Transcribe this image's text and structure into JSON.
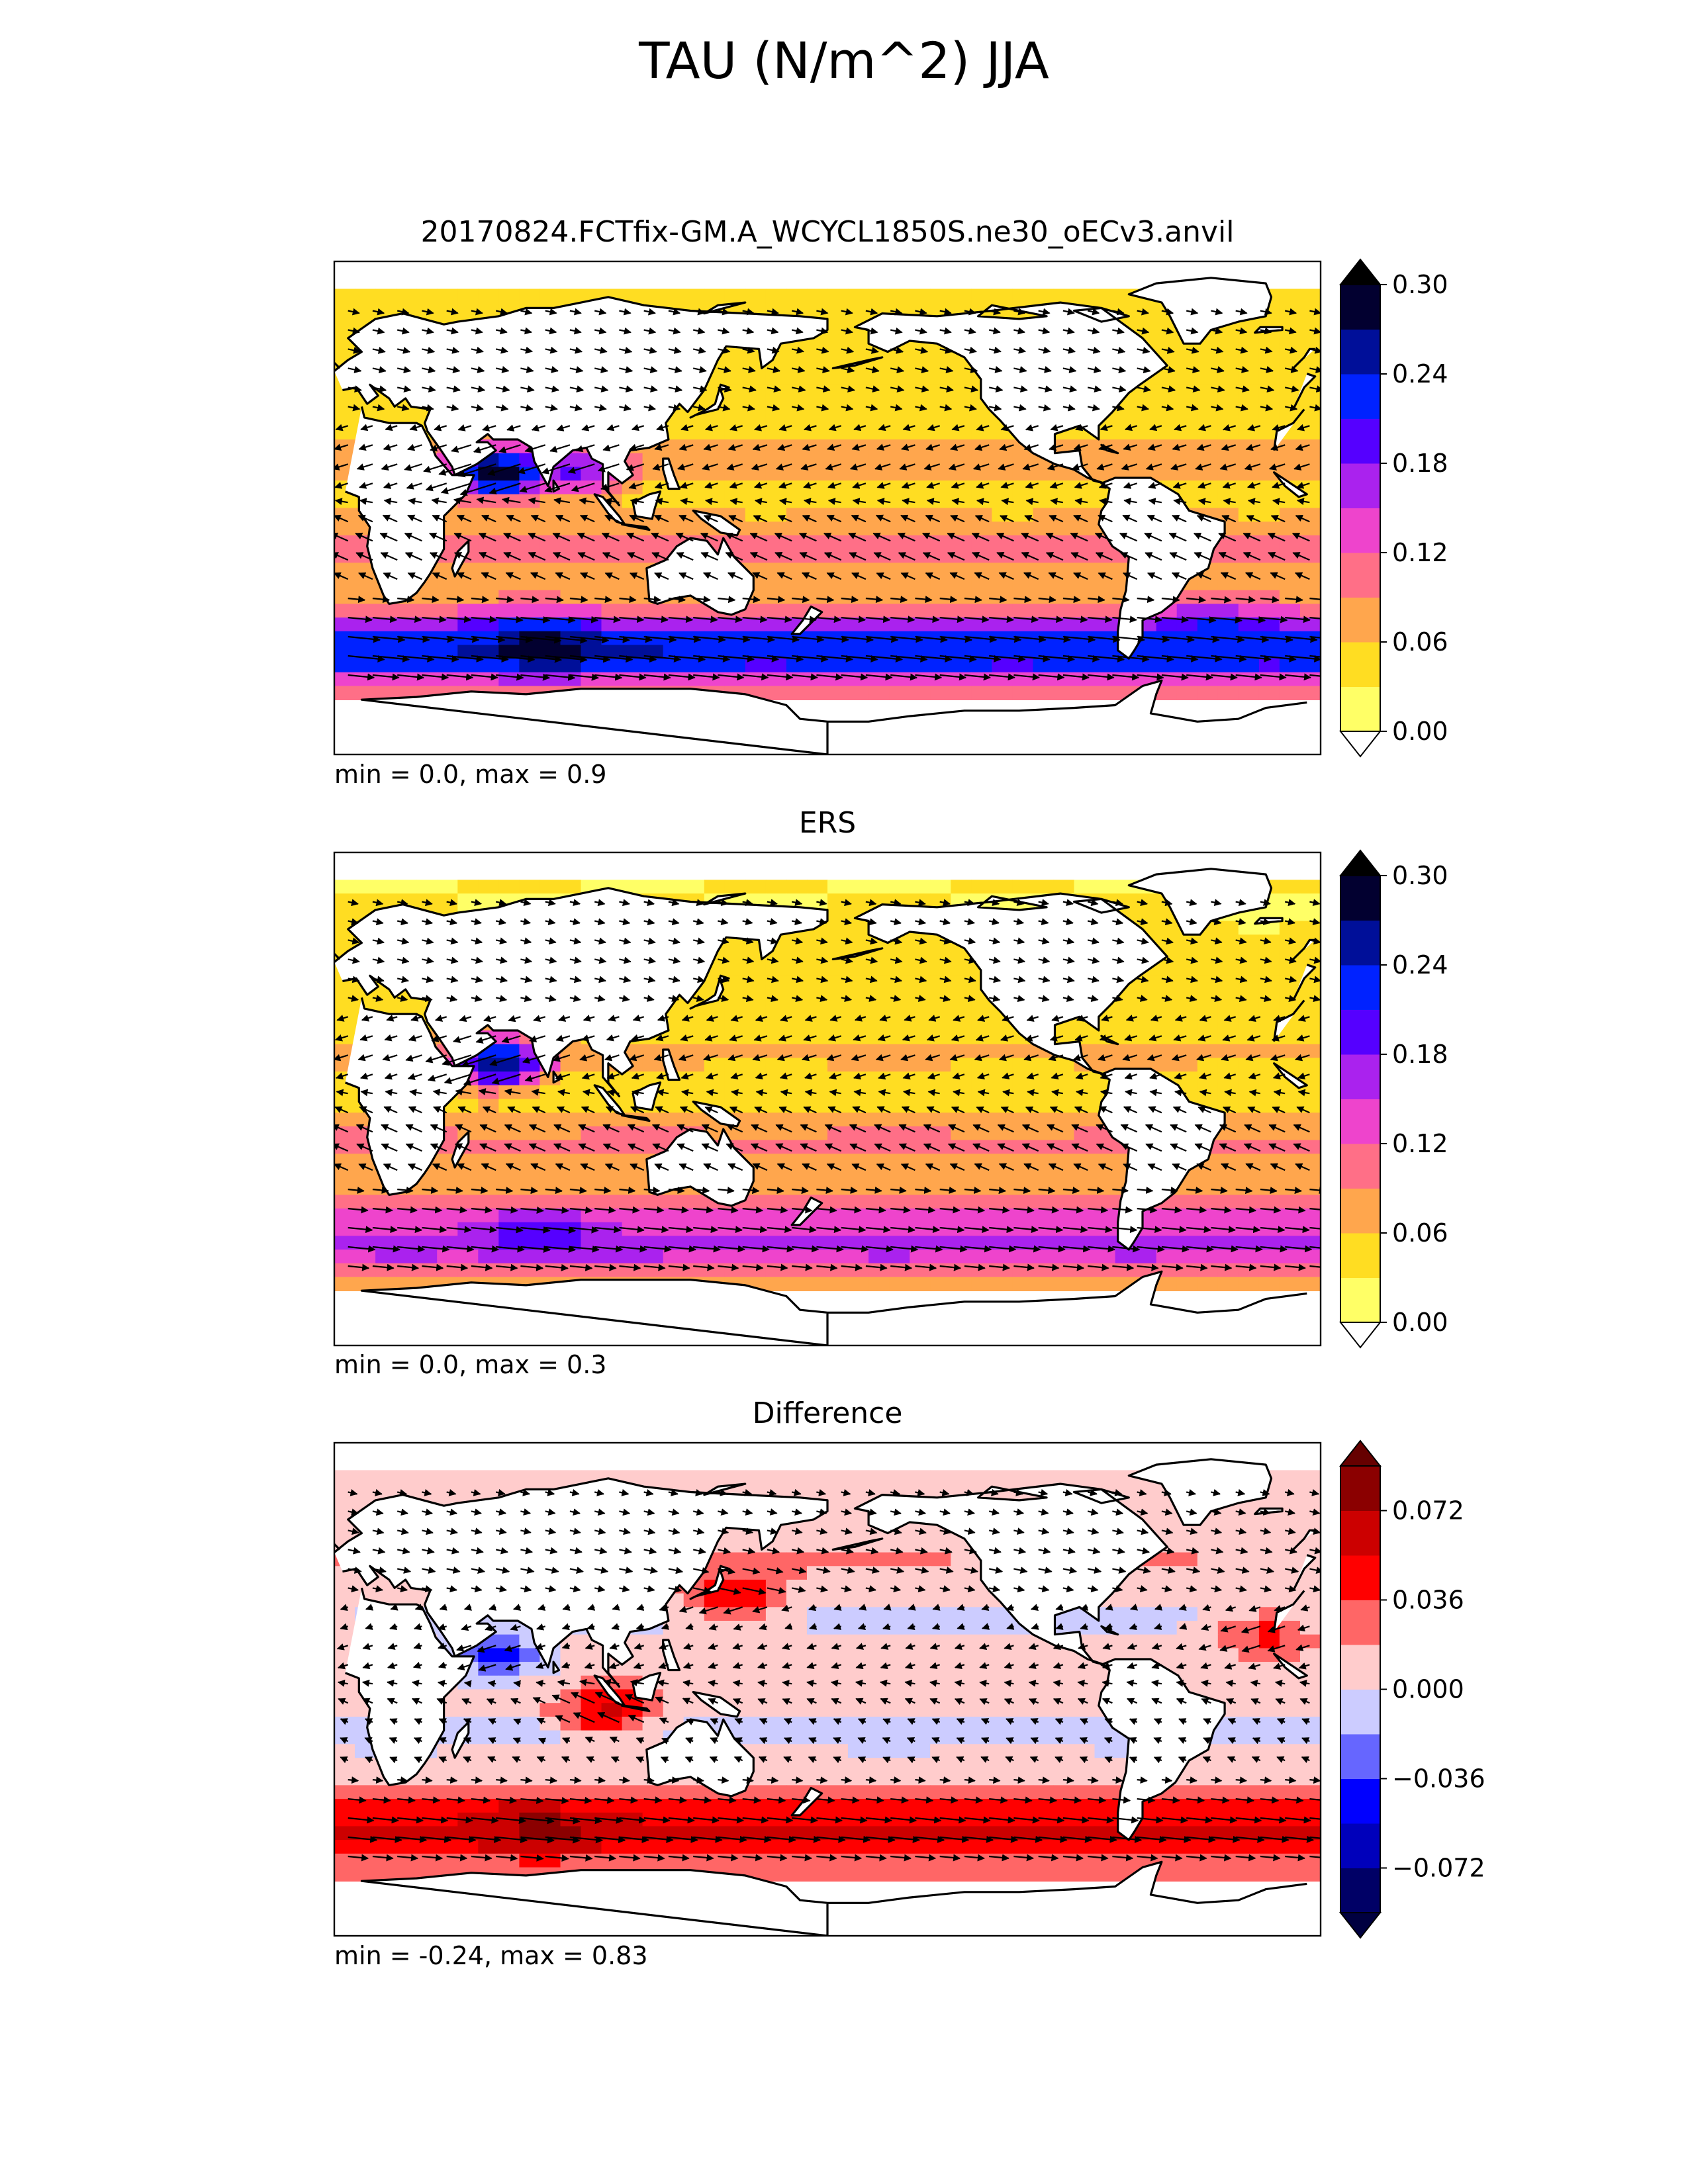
{
  "figure": {
    "title": "TAU (N/m^2) JJA"
  },
  "chart_data": [
    {
      "type": "heatmap",
      "panel": "test",
      "title": "20170824.FCTfix-GM.A_WCYCL1850S.ne30_oECv3.anvil",
      "stats": "min = 0.0, max = 0.9",
      "colorbar": {
        "levels": [
          0.0,
          0.03,
          0.06,
          0.09,
          0.12,
          0.15,
          0.18,
          0.21,
          0.24,
          0.27,
          0.3
        ],
        "tick_values": [
          0.0,
          0.06,
          0.12,
          0.18,
          0.24,
          0.3
        ],
        "tick_labels": [
          "0.00",
          "0.06",
          "0.12",
          "0.18",
          "0.24",
          "0.30"
        ],
        "colors": [
          "#ffff66",
          "#ffdd22",
          "#ffa64d",
          "#ff6f87",
          "#ee44cc",
          "#aa22ee",
          "#5500ff",
          "#0022ff",
          "#000f99",
          "#020030"
        ],
        "extend_low_color": "#ffffff",
        "extend_high_color": "#000000"
      },
      "bands": [
        {
          "lat": 75,
          "v": 0.04
        },
        {
          "lat": 65,
          "v": 0.04
        },
        {
          "lat": 55,
          "v": 0.05
        },
        {
          "lat": 45,
          "v": 0.06
        },
        {
          "lat": 35,
          "v": 0.04
        },
        {
          "lat": 25,
          "v": 0.06
        },
        {
          "lat": 15,
          "v": 0.08
        },
        {
          "lat": 5,
          "v": 0.04
        },
        {
          "lat": -5,
          "v": 0.07
        },
        {
          "lat": -15,
          "v": 0.11
        },
        {
          "lat": -25,
          "v": 0.07
        },
        {
          "lat": -35,
          "v": 0.09
        },
        {
          "lat": -45,
          "v": 0.2
        },
        {
          "lat": -55,
          "v": 0.25
        },
        {
          "lat": -65,
          "v": 0.1
        }
      ],
      "hotspots": [
        {
          "lon": 60,
          "lat": 13,
          "v": 0.3
        },
        {
          "lon": 88,
          "lat": 14,
          "v": 0.19
        },
        {
          "lon": 75,
          "lat": -50,
          "v": 0.3
        },
        {
          "lon": -40,
          "lat": -45,
          "v": 0.22
        }
      ],
      "vector_scale": 0.3
    },
    {
      "type": "heatmap",
      "panel": "reference",
      "title": "ERS",
      "stats": "min = 0.0, max = 0.3",
      "colorbar": {
        "levels": [
          0.0,
          0.03,
          0.06,
          0.09,
          0.12,
          0.15,
          0.18,
          0.21,
          0.24,
          0.27,
          0.3
        ],
        "tick_values": [
          0.0,
          0.06,
          0.12,
          0.18,
          0.24,
          0.3
        ],
        "tick_labels": [
          "0.00",
          "0.06",
          "0.12",
          "0.18",
          "0.24",
          "0.30"
        ],
        "colors": [
          "#ffff66",
          "#ffdd22",
          "#ffa64d",
          "#ff6f87",
          "#ee44cc",
          "#aa22ee",
          "#5500ff",
          "#0022ff",
          "#000f99",
          "#020030"
        ],
        "extend_low_color": "#ffffff",
        "extend_high_color": "#000000"
      },
      "bands": [
        {
          "lat": 75,
          "v": 0.03
        },
        {
          "lat": 65,
          "v": 0.03
        },
        {
          "lat": 55,
          "v": 0.04
        },
        {
          "lat": 45,
          "v": 0.04
        },
        {
          "lat": 35,
          "v": 0.03
        },
        {
          "lat": 25,
          "v": 0.05
        },
        {
          "lat": 15,
          "v": 0.07
        },
        {
          "lat": 5,
          "v": 0.03
        },
        {
          "lat": -5,
          "v": 0.06
        },
        {
          "lat": -15,
          "v": 0.1
        },
        {
          "lat": -25,
          "v": 0.07
        },
        {
          "lat": -35,
          "v": 0.08
        },
        {
          "lat": -45,
          "v": 0.14
        },
        {
          "lat": -55,
          "v": 0.17
        },
        {
          "lat": -65,
          "v": 0.08
        }
      ],
      "hotspots": [
        {
          "lon": 60,
          "lat": 13,
          "v": 0.26
        },
        {
          "lon": 75,
          "lat": -50,
          "v": 0.2
        }
      ],
      "vector_scale": 0.3
    },
    {
      "type": "heatmap",
      "panel": "difference",
      "title": "Difference",
      "stats": "min = -0.24, max = 0.83",
      "colorbar": {
        "levels": [
          -0.09,
          -0.072,
          -0.054,
          -0.036,
          -0.018,
          0.0,
          0.018,
          0.036,
          0.054,
          0.072,
          0.09
        ],
        "tick_values": [
          -0.072,
          -0.036,
          0.0,
          0.036,
          0.072
        ],
        "tick_labels": [
          "−0.072",
          "−0.036",
          "0.000",
          "0.036",
          "0.072"
        ],
        "colors": [
          "#000066",
          "#0000bb",
          "#0000ff",
          "#6666ff",
          "#ccccff",
          "#ffcccc",
          "#ff6666",
          "#ff0000",
          "#cc0000",
          "#8b0000"
        ],
        "extend_low_color": "#000040",
        "extend_high_color": "#660000"
      },
      "bands": [
        {
          "lat": 75,
          "v": 0.006
        },
        {
          "lat": 65,
          "v": 0.01
        },
        {
          "lat": 55,
          "v": 0.012
        },
        {
          "lat": 45,
          "v": 0.02
        },
        {
          "lat": 35,
          "v": 0.008
        },
        {
          "lat": 25,
          "v": -0.005
        },
        {
          "lat": 15,
          "v": 0.01
        },
        {
          "lat": 5,
          "v": 0.008
        },
        {
          "lat": -5,
          "v": 0.01
        },
        {
          "lat": -15,
          "v": -0.01
        },
        {
          "lat": -25,
          "v": 0.004
        },
        {
          "lat": -35,
          "v": 0.012
        },
        {
          "lat": -45,
          "v": 0.05
        },
        {
          "lat": -55,
          "v": 0.062
        },
        {
          "lat": -65,
          "v": 0.02
        }
      ],
      "hotspots": [
        {
          "lon": 60,
          "lat": 13,
          "v": -0.04
        },
        {
          "lon": 100,
          "lat": -8,
          "v": 0.06
        },
        {
          "lon": 145,
          "lat": 35,
          "v": 0.05
        },
        {
          "lon": -20,
          "lat": 20,
          "v": 0.04
        },
        {
          "lon": 75,
          "lat": -50,
          "v": 0.08
        }
      ],
      "vector_scale": 0.1
    }
  ]
}
